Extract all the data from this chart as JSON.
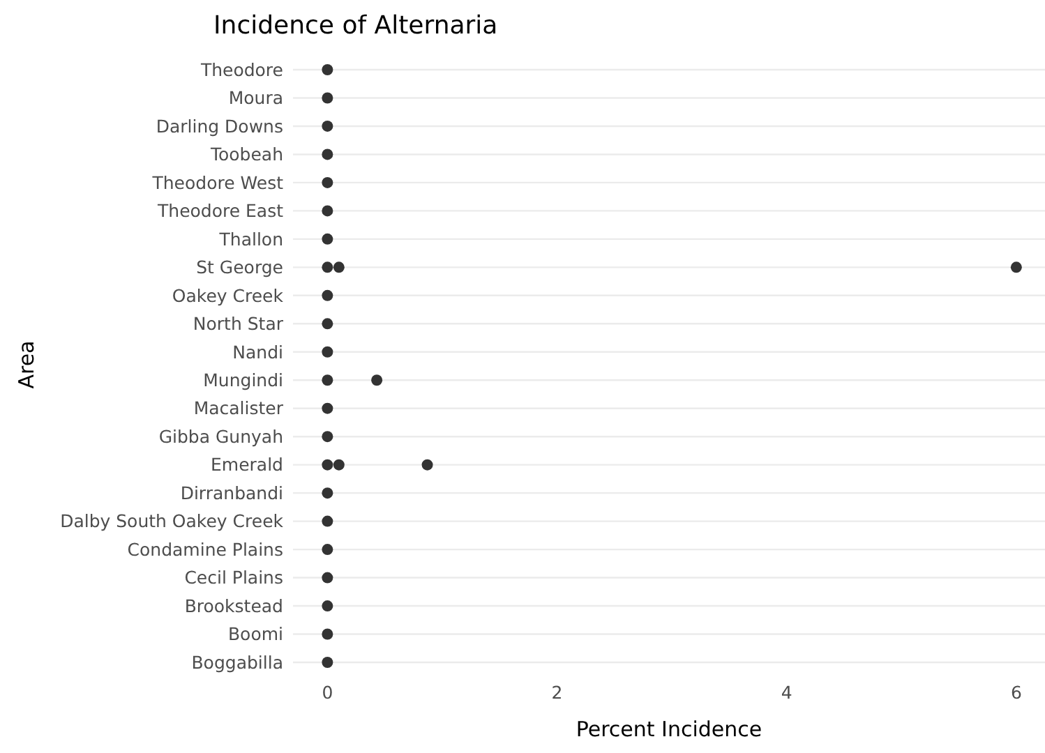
{
  "chart_data": {
    "type": "scatter",
    "orientation": "horizontal",
    "title": "Incidence of Alternaria",
    "xlabel": "Percent Incidence",
    "ylabel": "Area",
    "categories": [
      "Theodore",
      "Moura",
      "Darling Downs",
      "Toobeah",
      "Theodore West",
      "Theodore East",
      "Thallon",
      "St George",
      "Oakey Creek",
      "North Star",
      "Nandi",
      "Mungindi",
      "Macalister",
      "Gibba Gunyah",
      "Emerald",
      "Dirranbandi",
      "Dalby South Oakey Creek",
      "Condamine Plains",
      "Cecil Plains",
      "Brookstead",
      "Boomi",
      "Boggabilla"
    ],
    "series": [
      {
        "color": "#333333",
        "values": [
          0,
          0,
          0,
          0,
          0,
          0,
          0,
          0,
          0,
          0,
          0,
          0,
          0,
          0,
          0,
          0,
          0,
          0,
          0,
          0,
          0,
          0
        ]
      },
      {
        "color": "#333333",
        "values": [
          null,
          null,
          null,
          null,
          null,
          null,
          null,
          0.1,
          null,
          null,
          null,
          0.43,
          null,
          null,
          0.1,
          null,
          null,
          null,
          null,
          null,
          null,
          null
        ]
      },
      {
        "color": "#333333",
        "values": [
          null,
          null,
          null,
          null,
          null,
          null,
          null,
          6,
          null,
          null,
          null,
          null,
          null,
          null,
          0.87,
          null,
          null,
          null,
          null,
          null,
          null,
          null
        ]
      }
    ],
    "xlim": [
      -0.3,
      6.25
    ],
    "xticks": [
      0,
      2,
      4,
      6
    ],
    "grid": "y",
    "marker": "circle"
  }
}
